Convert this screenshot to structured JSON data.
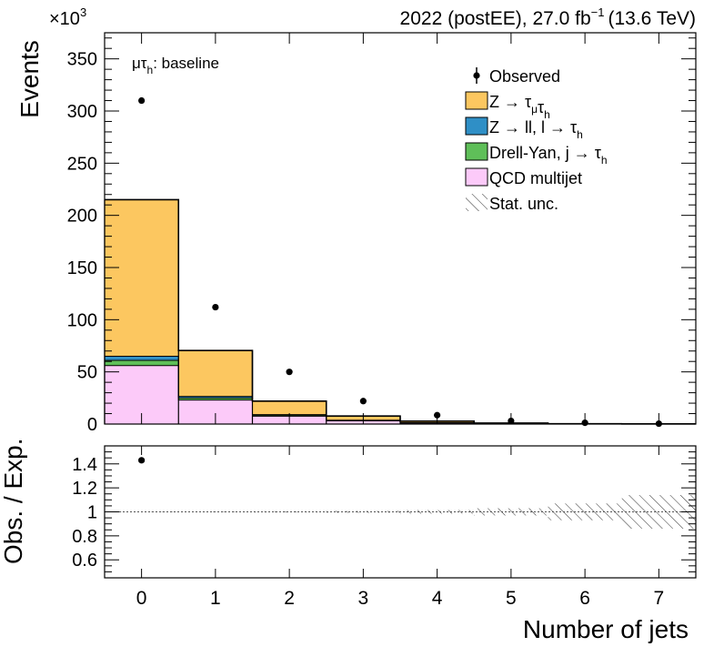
{
  "chart_data": [
    {
      "type": "bar",
      "stacked": true,
      "header": {
        "multiplier_base": "×10",
        "multiplier_exp": "3",
        "period": "2022 (postEE), 27.0 fb",
        "lumi_exp": "−1",
        "energy": "(13.6 TeV)"
      },
      "channel": {
        "main": "μτ",
        "sub": "h",
        "suffix": ": baseline"
      },
      "ylabel": "Events",
      "ylim": [
        0,
        375
      ],
      "yticks": [
        0,
        50,
        100,
        150,
        200,
        250,
        300,
        350
      ],
      "x": [
        0,
        1,
        2,
        3,
        4,
        5,
        6,
        7
      ],
      "series": [
        {
          "name": "QCD multijet",
          "color": "#fccaf9",
          "values": [
            56,
            23,
            7.5,
            3,
            1,
            0.3,
            0.1,
            0.05
          ]
        },
        {
          "name": "Drell-Yan, j → τh",
          "color": "#5fbf59",
          "values": [
            5,
            2,
            1,
            0.5,
            0.2,
            0.1,
            0.05,
            0.02
          ]
        },
        {
          "name": "Z → ll, l → τh",
          "color": "#2f8fc6",
          "values": [
            4,
            1.5,
            0.5,
            0.2,
            0.1,
            0.05,
            0.02,
            0.01
          ]
        },
        {
          "name": "Z → τμτh",
          "color": "#fcc760",
          "values": [
            150,
            44,
            13,
            4,
            1.5,
            0.5,
            0.15,
            0.05
          ]
        }
      ],
      "observed": {
        "name": "Observed",
        "values": [
          310,
          112,
          50,
          22,
          8.5,
          3,
          1.2,
          0.4
        ]
      },
      "legend": [
        {
          "kind": "marker",
          "text": "Observed"
        },
        {
          "kind": "box",
          "color": "#fcc760",
          "parts": [
            {
              "t": "Z → τ"
            },
            {
              "t": "μ",
              "sub": true
            },
            {
              "t": "τ"
            },
            {
              "t": "h",
              "sub": true
            }
          ]
        },
        {
          "kind": "box",
          "color": "#2f8fc6",
          "parts": [
            {
              "t": "Z → ll, l → τ"
            },
            {
              "t": "h",
              "sub": true
            }
          ]
        },
        {
          "kind": "box",
          "color": "#5fbf59",
          "parts": [
            {
              "t": "Drell-Yan, j  → τ"
            },
            {
              "t": "h",
              "sub": true
            }
          ]
        },
        {
          "kind": "box",
          "color": "#fccaf9",
          "parts": [
            {
              "t": "QCD multijet"
            }
          ]
        },
        {
          "kind": "hatch",
          "parts": [
            {
              "t": "Stat. unc."
            }
          ]
        }
      ],
      "legend_position": "top-right"
    },
    {
      "type": "scatter",
      "ylabel": "Obs. / Exp.",
      "xlabel": "Number of jets",
      "ylim": [
        0.45,
        1.55
      ],
      "yticks": [
        0.6,
        0.8,
        1,
        1.2,
        1.4
      ],
      "ytick_labels": [
        "0.6",
        "0.8",
        "1",
        "1.2",
        "1.4"
      ],
      "x": [
        0,
        1,
        2,
        3,
        4,
        5,
        6,
        7
      ],
      "xtick_labels": [
        "0",
        "1",
        "2",
        "3",
        "4",
        "5",
        "6",
        "7"
      ],
      "ratio_values": [
        1.43
      ],
      "stat_unc": [
        0.002,
        0.003,
        0.005,
        0.008,
        0.015,
        0.03,
        0.07,
        0.14
      ],
      "reference_line": 1
    }
  ]
}
